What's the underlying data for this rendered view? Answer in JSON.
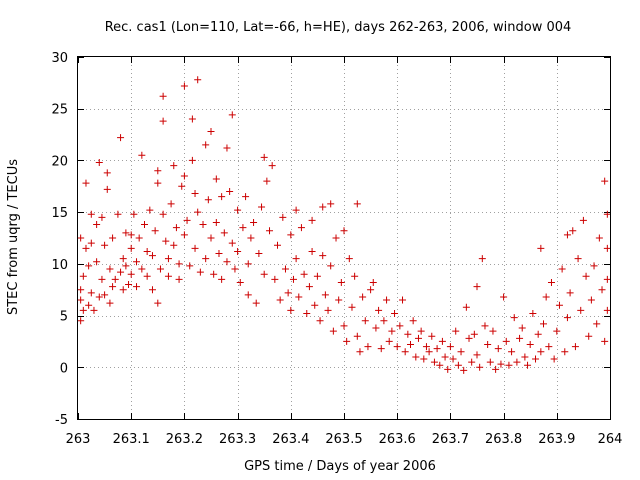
{
  "chart_data": {
    "type": "scatter",
    "title": "Rec. cas1 (Lon=110, Lat=-66, h=HE), days 262-263, 2006, window 004",
    "xlabel": "GPS time / Days of year 2006",
    "ylabel": "STEC from uqrg / TECUs",
    "xlim": [
      263,
      264
    ],
    "ylim": [
      -5,
      30
    ],
    "x_ticks": [
      263,
      263.1,
      263.2,
      263.3,
      263.4,
      263.5,
      263.6,
      263.7,
      263.8,
      263.9,
      264
    ],
    "x_tick_labels": [
      "263",
      "263.1",
      "263.2",
      "263.3",
      "263.4",
      "263.5",
      "263.6",
      "263.7",
      "263.8",
      "263.9",
      "264"
    ],
    "y_ticks": [
      -5,
      0,
      5,
      10,
      15,
      20,
      25,
      30
    ],
    "y_tick_labels": [
      "-5",
      "0",
      "5",
      "10",
      "15",
      "20",
      "25",
      "30"
    ],
    "grid": true,
    "marker": "plus",
    "color": "#cc0000",
    "series": [
      {
        "points": [
          [
            263.005,
            4.5
          ],
          [
            263.005,
            6.5
          ],
          [
            263.005,
            7.5
          ],
          [
            263.005,
            12.5
          ],
          [
            263.01,
            5.5
          ],
          [
            263.01,
            8.8
          ],
          [
            263.015,
            17.8
          ],
          [
            263.015,
            11.5
          ],
          [
            263.02,
            6.0
          ],
          [
            263.02,
            9.8
          ],
          [
            263.025,
            14.8
          ],
          [
            263.025,
            7.2
          ],
          [
            263.025,
            12.0
          ],
          [
            263.03,
            5.5
          ],
          [
            263.035,
            10.2
          ],
          [
            263.035,
            13.8
          ],
          [
            263.04,
            19.8
          ],
          [
            263.04,
            6.8
          ],
          [
            263.045,
            8.5
          ],
          [
            263.045,
            14.5
          ],
          [
            263.05,
            11.8
          ],
          [
            263.05,
            7.0
          ],
          [
            263.055,
            17.2
          ],
          [
            263.055,
            18.8
          ],
          [
            263.06,
            9.5
          ],
          [
            263.06,
            6.2
          ],
          [
            263.065,
            7.8
          ],
          [
            263.065,
            12.5
          ],
          [
            263.07,
            8.5
          ],
          [
            263.075,
            14.8
          ],
          [
            263.08,
            22.2
          ],
          [
            263.08,
            9.2
          ],
          [
            263.085,
            10.5
          ],
          [
            263.085,
            7.5
          ],
          [
            263.09,
            9.8
          ],
          [
            263.09,
            13.0
          ],
          [
            263.095,
            8.0
          ],
          [
            263.1,
            12.8
          ],
          [
            263.1,
            11.5
          ],
          [
            263.1,
            9.0
          ],
          [
            263.105,
            14.8
          ],
          [
            263.11,
            10.2
          ],
          [
            263.11,
            7.8
          ],
          [
            263.115,
            12.5
          ],
          [
            263.12,
            20.5
          ],
          [
            263.12,
            9.5
          ],
          [
            263.125,
            13.8
          ],
          [
            263.13,
            8.8
          ],
          [
            263.13,
            11.2
          ],
          [
            263.135,
            15.2
          ],
          [
            263.14,
            10.8
          ],
          [
            263.14,
            7.5
          ],
          [
            263.145,
            13.2
          ],
          [
            263.15,
            19.0
          ],
          [
            263.15,
            17.8
          ],
          [
            263.15,
            6.2
          ],
          [
            263.155,
            9.5
          ],
          [
            263.16,
            26.2
          ],
          [
            263.16,
            23.8
          ],
          [
            263.16,
            14.8
          ],
          [
            263.165,
            12.2
          ],
          [
            263.17,
            10.5
          ],
          [
            263.17,
            8.8
          ],
          [
            263.175,
            15.8
          ],
          [
            263.18,
            19.5
          ],
          [
            263.18,
            11.8
          ],
          [
            263.185,
            13.5
          ],
          [
            263.19,
            8.5
          ],
          [
            263.19,
            10.0
          ],
          [
            263.195,
            17.5
          ],
          [
            263.2,
            27.2
          ],
          [
            263.2,
            18.5
          ],
          [
            263.2,
            12.8
          ],
          [
            263.205,
            14.2
          ],
          [
            263.21,
            9.8
          ],
          [
            263.215,
            24.0
          ],
          [
            263.215,
            20.0
          ],
          [
            263.22,
            16.8
          ],
          [
            263.22,
            11.5
          ],
          [
            263.225,
            27.8
          ],
          [
            263.225,
            15.0
          ],
          [
            263.23,
            9.2
          ],
          [
            263.235,
            13.8
          ],
          [
            263.24,
            21.5
          ],
          [
            263.24,
            10.5
          ],
          [
            263.245,
            16.2
          ],
          [
            263.25,
            22.8
          ],
          [
            263.25,
            12.5
          ],
          [
            263.255,
            9.0
          ],
          [
            263.26,
            18.2
          ],
          [
            263.26,
            14.0
          ],
          [
            263.265,
            11.0
          ],
          [
            263.27,
            16.5
          ],
          [
            263.27,
            8.5
          ],
          [
            263.275,
            13.0
          ],
          [
            263.28,
            21.2
          ],
          [
            263.28,
            10.2
          ],
          [
            263.285,
            17.0
          ],
          [
            263.29,
            24.4
          ],
          [
            263.29,
            12.0
          ],
          [
            263.295,
            9.5
          ],
          [
            263.3,
            15.2
          ],
          [
            263.3,
            11.2
          ],
          [
            263.305,
            8.2
          ],
          [
            263.31,
            13.5
          ],
          [
            263.315,
            16.5
          ],
          [
            263.32,
            10.0
          ],
          [
            263.32,
            7.0
          ],
          [
            263.325,
            12.5
          ],
          [
            263.33,
            14.0
          ],
          [
            263.335,
            6.2
          ],
          [
            263.34,
            11.0
          ],
          [
            263.345,
            15.5
          ],
          [
            263.35,
            20.3
          ],
          [
            263.35,
            9.0
          ],
          [
            263.355,
            18.0
          ],
          [
            263.36,
            13.2
          ],
          [
            263.365,
            19.5
          ],
          [
            263.37,
            8.5
          ],
          [
            263.375,
            11.8
          ],
          [
            263.38,
            6.5
          ],
          [
            263.385,
            14.5
          ],
          [
            263.39,
            9.5
          ],
          [
            263.395,
            7.2
          ],
          [
            263.4,
            12.8
          ],
          [
            263.4,
            5.5
          ],
          [
            263.405,
            8.5
          ],
          [
            263.41,
            15.2
          ],
          [
            263.41,
            10.5
          ],
          [
            263.415,
            6.8
          ],
          [
            263.42,
            13.5
          ],
          [
            263.425,
            9.0
          ],
          [
            263.43,
            5.2
          ],
          [
            263.435,
            7.8
          ],
          [
            263.44,
            14.2
          ],
          [
            263.44,
            11.2
          ],
          [
            263.445,
            6.0
          ],
          [
            263.45,
            8.8
          ],
          [
            263.455,
            4.5
          ],
          [
            263.46,
            15.5
          ],
          [
            263.46,
            10.8
          ],
          [
            263.465,
            7.0
          ],
          [
            263.47,
            5.5
          ],
          [
            263.475,
            15.8
          ],
          [
            263.475,
            9.8
          ],
          [
            263.48,
            3.5
          ],
          [
            263.485,
            12.5
          ],
          [
            263.49,
            6.5
          ],
          [
            263.495,
            8.2
          ],
          [
            263.5,
            4.0
          ],
          [
            263.5,
            13.2
          ],
          [
            263.505,
            2.5
          ],
          [
            263.51,
            10.5
          ],
          [
            263.515,
            5.8
          ],
          [
            263.52,
            8.8
          ],
          [
            263.525,
            15.8
          ],
          [
            263.525,
            3.0
          ],
          [
            263.53,
            1.5
          ],
          [
            263.535,
            6.8
          ],
          [
            263.54,
            4.5
          ],
          [
            263.545,
            2.0
          ],
          [
            263.55,
            7.5
          ],
          [
            263.555,
            8.2
          ],
          [
            263.56,
            3.8
          ],
          [
            263.565,
            5.5
          ],
          [
            263.57,
            1.8
          ],
          [
            263.575,
            4.5
          ],
          [
            263.58,
            6.5
          ],
          [
            263.585,
            2.5
          ],
          [
            263.59,
            3.5
          ],
          [
            263.595,
            5.2
          ],
          [
            263.6,
            2.0
          ],
          [
            263.605,
            4.0
          ],
          [
            263.61,
            6.5
          ],
          [
            263.615,
            1.5
          ],
          [
            263.62,
            3.2
          ],
          [
            263.625,
            2.2
          ],
          [
            263.63,
            4.5
          ],
          [
            263.635,
            1.0
          ],
          [
            263.64,
            2.8
          ],
          [
            263.645,
            3.5
          ],
          [
            263.65,
            0.8
          ],
          [
            263.655,
            2.0
          ],
          [
            263.66,
            1.5
          ],
          [
            263.665,
            3.0
          ],
          [
            263.67,
            0.5
          ],
          [
            263.675,
            1.8
          ],
          [
            263.68,
            0.2
          ],
          [
            263.685,
            2.5
          ],
          [
            263.69,
            1.0
          ],
          [
            263.695,
            -0.2
          ],
          [
            263.7,
            2.0
          ],
          [
            263.705,
            0.8
          ],
          [
            263.71,
            3.5
          ],
          [
            263.715,
            0.2
          ],
          [
            263.72,
            1.5
          ],
          [
            263.725,
            -0.3
          ],
          [
            263.73,
            5.8
          ],
          [
            263.735,
            2.8
          ],
          [
            263.74,
            0.5
          ],
          [
            263.745,
            3.2
          ],
          [
            263.75,
            7.8
          ],
          [
            263.75,
            1.2
          ],
          [
            263.755,
            0.0
          ],
          [
            263.76,
            10.5
          ],
          [
            263.765,
            4.0
          ],
          [
            263.77,
            2.2
          ],
          [
            263.775,
            0.5
          ],
          [
            263.78,
            3.5
          ],
          [
            263.785,
            -0.2
          ],
          [
            263.79,
            1.8
          ],
          [
            263.795,
            0.3
          ],
          [
            263.8,
            6.8
          ],
          [
            263.805,
            2.5
          ],
          [
            263.81,
            0.2
          ],
          [
            263.815,
            1.5
          ],
          [
            263.82,
            4.8
          ],
          [
            263.825,
            0.5
          ],
          [
            263.83,
            2.8
          ],
          [
            263.835,
            3.8
          ],
          [
            263.84,
            1.0
          ],
          [
            263.845,
            0.2
          ],
          [
            263.85,
            2.2
          ],
          [
            263.855,
            5.2
          ],
          [
            263.86,
            0.8
          ],
          [
            263.865,
            3.2
          ],
          [
            263.87,
            11.5
          ],
          [
            263.87,
            1.5
          ],
          [
            263.875,
            4.2
          ],
          [
            263.88,
            6.8
          ],
          [
            263.885,
            2.0
          ],
          [
            263.89,
            8.2
          ],
          [
            263.895,
            0.8
          ],
          [
            263.9,
            3.5
          ],
          [
            263.905,
            6.0
          ],
          [
            263.91,
            9.5
          ],
          [
            263.915,
            1.5
          ],
          [
            263.92,
            12.8
          ],
          [
            263.92,
            4.8
          ],
          [
            263.925,
            7.2
          ],
          [
            263.93,
            13.2
          ],
          [
            263.935,
            2.0
          ],
          [
            263.94,
            10.5
          ],
          [
            263.945,
            5.5
          ],
          [
            263.95,
            14.2
          ],
          [
            263.955,
            8.8
          ],
          [
            263.96,
            3.0
          ],
          [
            263.965,
            6.5
          ],
          [
            263.97,
            9.8
          ],
          [
            263.975,
            4.2
          ],
          [
            263.98,
            12.5
          ],
          [
            263.985,
            7.5
          ],
          [
            263.99,
            2.5
          ],
          [
            263.99,
            18.0
          ],
          [
            263.995,
            14.8
          ],
          [
            263.995,
            11.5
          ],
          [
            263.995,
            5.5
          ],
          [
            263.995,
            8.5
          ]
        ]
      }
    ]
  }
}
